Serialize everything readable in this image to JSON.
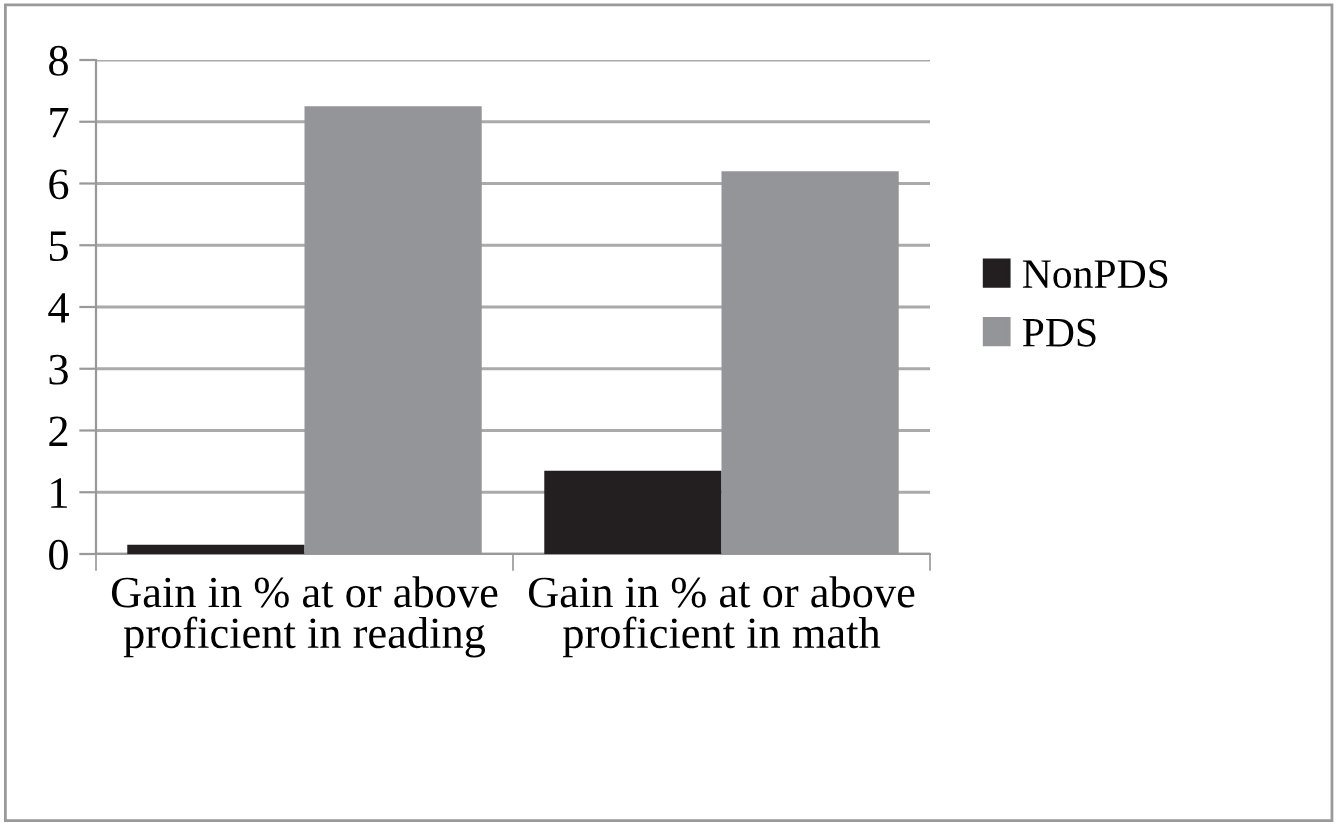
{
  "chart_data": {
    "type": "bar",
    "categories": [
      "Gain in % at or above proficient in reading",
      "Gain in % at or above proficient in math"
    ],
    "series": [
      {
        "name": "NonPDS",
        "color": "#231f20",
        "values": [
          0.15,
          1.35
        ]
      },
      {
        "name": "PDS",
        "color": "#939598",
        "values": [
          7.25,
          6.2
        ]
      }
    ],
    "ylim": [
      0,
      8
    ],
    "yticks": [
      0,
      1,
      2,
      3,
      4,
      5,
      6,
      7,
      8
    ],
    "grid": "y",
    "legend": "right"
  }
}
